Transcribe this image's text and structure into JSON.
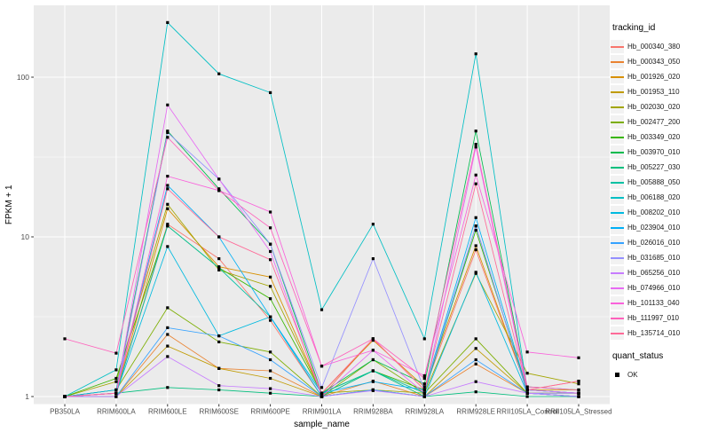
{
  "chart_data": {
    "type": "line",
    "xlabel": "sample_name",
    "ylabel": "FPKM + 1",
    "y_scale": "log10",
    "y_ticks": [
      1,
      10,
      100
    ],
    "y_tick_labels": [
      "1",
      "10",
      "100"
    ],
    "y_minor_breaks": [
      3.162,
      31.62
    ],
    "ylim": [
      1,
      280
    ],
    "grid": true,
    "panel_bg": "#EBEBEB",
    "grid_color": "#FFFFFF",
    "tick_label_color": "#4D4D4D",
    "marker_color": "#000000",
    "legend_position": "right",
    "legend_title": "tracking_id",
    "legend2_title": "quant_status",
    "legend2_items": [
      {
        "label": "OK",
        "marker": "black-square"
      }
    ],
    "x_categories": [
      "PB350LA",
      "RRIM600LA",
      "RRIM600LE",
      "RRIM600SE",
      "RRIM600PE",
      "RRIM901LA",
      "RRIM928BA",
      "RRIM928LA",
      "RRIM928LE",
      "RRII105LA_Control",
      "RRII105LA_Stressed"
    ],
    "series": [
      {
        "name": "Hb_000340_380",
        "color": "#F8766D",
        "values": [
          1.0,
          1.05,
          12,
          7.3,
          3.0,
          1.0,
          2.3,
          1.1,
          8.3,
          1.1,
          1.25
        ]
      },
      {
        "name": "Hb_000343_050",
        "color": "#EA8331",
        "values": [
          1.0,
          1.0,
          2.45,
          1.5,
          1.45,
          1.0,
          1.25,
          1.0,
          1.6,
          1.05,
          1.05
        ]
      },
      {
        "name": "Hb_001926_020",
        "color": "#D89000",
        "values": [
          1.0,
          1.05,
          15,
          6.5,
          5.6,
          1.05,
          2.25,
          1.15,
          8.8,
          1.1,
          1.1
        ]
      },
      {
        "name": "Hb_001953_110",
        "color": "#C09B00",
        "values": [
          1.0,
          1.0,
          2.07,
          1.5,
          1.3,
          1.0,
          1.1,
          1.0,
          2.0,
          1.05,
          1.0
        ]
      },
      {
        "name": "Hb_002030_020",
        "color": "#A3A500",
        "values": [
          1.0,
          1.24,
          16,
          6.2,
          4.9,
          1.05,
          1.1,
          1.05,
          5.9,
          1.4,
          1.2
        ]
      },
      {
        "name": "Hb_002477_200",
        "color": "#7CAE00",
        "values": [
          1.0,
          1.1,
          3.6,
          2.2,
          1.9,
          1.0,
          1.7,
          1.05,
          2.3,
          1.05,
          1.05
        ]
      },
      {
        "name": "Hb_003349_020",
        "color": "#39B600",
        "values": [
          1.0,
          1.3,
          11.7,
          6.4,
          4.1,
          1.05,
          1.45,
          1.1,
          11.0,
          1.1,
          1.05
        ]
      },
      {
        "name": "Hb_003970_010",
        "color": "#00BB4E",
        "values": [
          1.0,
          1.1,
          46,
          20,
          9.0,
          1.05,
          1.7,
          1.2,
          46,
          1.15,
          1.1
        ]
      },
      {
        "name": "Hb_005227_030",
        "color": "#00BF7D",
        "values": [
          1.0,
          1.05,
          1.14,
          1.1,
          1.05,
          1.0,
          1.45,
          1.0,
          1.07,
          1.0,
          1.0
        ]
      },
      {
        "name": "Hb_005888_050",
        "color": "#00C1A3",
        "values": [
          1.0,
          1.05,
          11.7,
          6.4,
          3.16,
          1.05,
          1.45,
          1.05,
          11.7,
          1.05,
          1.0
        ]
      },
      {
        "name": "Hb_006188_020",
        "color": "#00BFC4",
        "values": [
          1.0,
          1.47,
          220,
          105,
          80,
          3.5,
          12,
          2.3,
          140,
          1.1,
          1.05
        ]
      },
      {
        "name": "Hb_008202_010",
        "color": "#00BAE0",
        "values": [
          1.0,
          1.05,
          8.7,
          2.4,
          3.16,
          1.0,
          1.1,
          1.0,
          6.0,
          1.05,
          1.0
        ]
      },
      {
        "name": "Hb_023904_010",
        "color": "#00B0F6",
        "values": [
          1.0,
          1.1,
          21,
          10,
          3.16,
          1.05,
          1.24,
          1.1,
          13.2,
          1.1,
          1.05
        ]
      },
      {
        "name": "Hb_026016_010",
        "color": "#35A2FF",
        "values": [
          1.0,
          1.0,
          2.7,
          2.4,
          1.7,
          1.0,
          1.1,
          1.0,
          1.7,
          1.05,
          1.0
        ]
      },
      {
        "name": "Hb_031685_010",
        "color": "#9590FF",
        "values": [
          1.0,
          1.05,
          45,
          23,
          9.0,
          1.14,
          7.3,
          1.1,
          11.7,
          1.05,
          1.05
        ]
      },
      {
        "name": "Hb_065256_010",
        "color": "#C77CFF",
        "values": [
          1.0,
          1.0,
          1.78,
          1.17,
          1.12,
          1.0,
          1.09,
          1.0,
          1.24,
          1.05,
          1.0
        ]
      },
      {
        "name": "Hb_074966_010",
        "color": "#E76BF3",
        "values": [
          1.0,
          1.05,
          67,
          23,
          8.1,
          1.0,
          1.95,
          1.05,
          36.5,
          1.1,
          1.05
        ]
      },
      {
        "name": "Hb_101133_040",
        "color": "#FA62DB",
        "values": [
          1.0,
          1.05,
          24,
          19.5,
          14.3,
          1.55,
          1.95,
          1.35,
          24.4,
          1.9,
          1.75
        ]
      },
      {
        "name": "Hb_111997_010",
        "color": "#FF62BC",
        "values": [
          2.3,
          1.87,
          42,
          19.5,
          11.4,
          1.55,
          2.3,
          1.3,
          38,
          1.15,
          1.1
        ]
      },
      {
        "name": "Hb_135714_010",
        "color": "#FF6A98",
        "values": [
          1.0,
          1.05,
          20,
          10,
          7.2,
          1.05,
          2.3,
          1.1,
          21.5,
          1.1,
          1.25
        ]
      }
    ]
  }
}
